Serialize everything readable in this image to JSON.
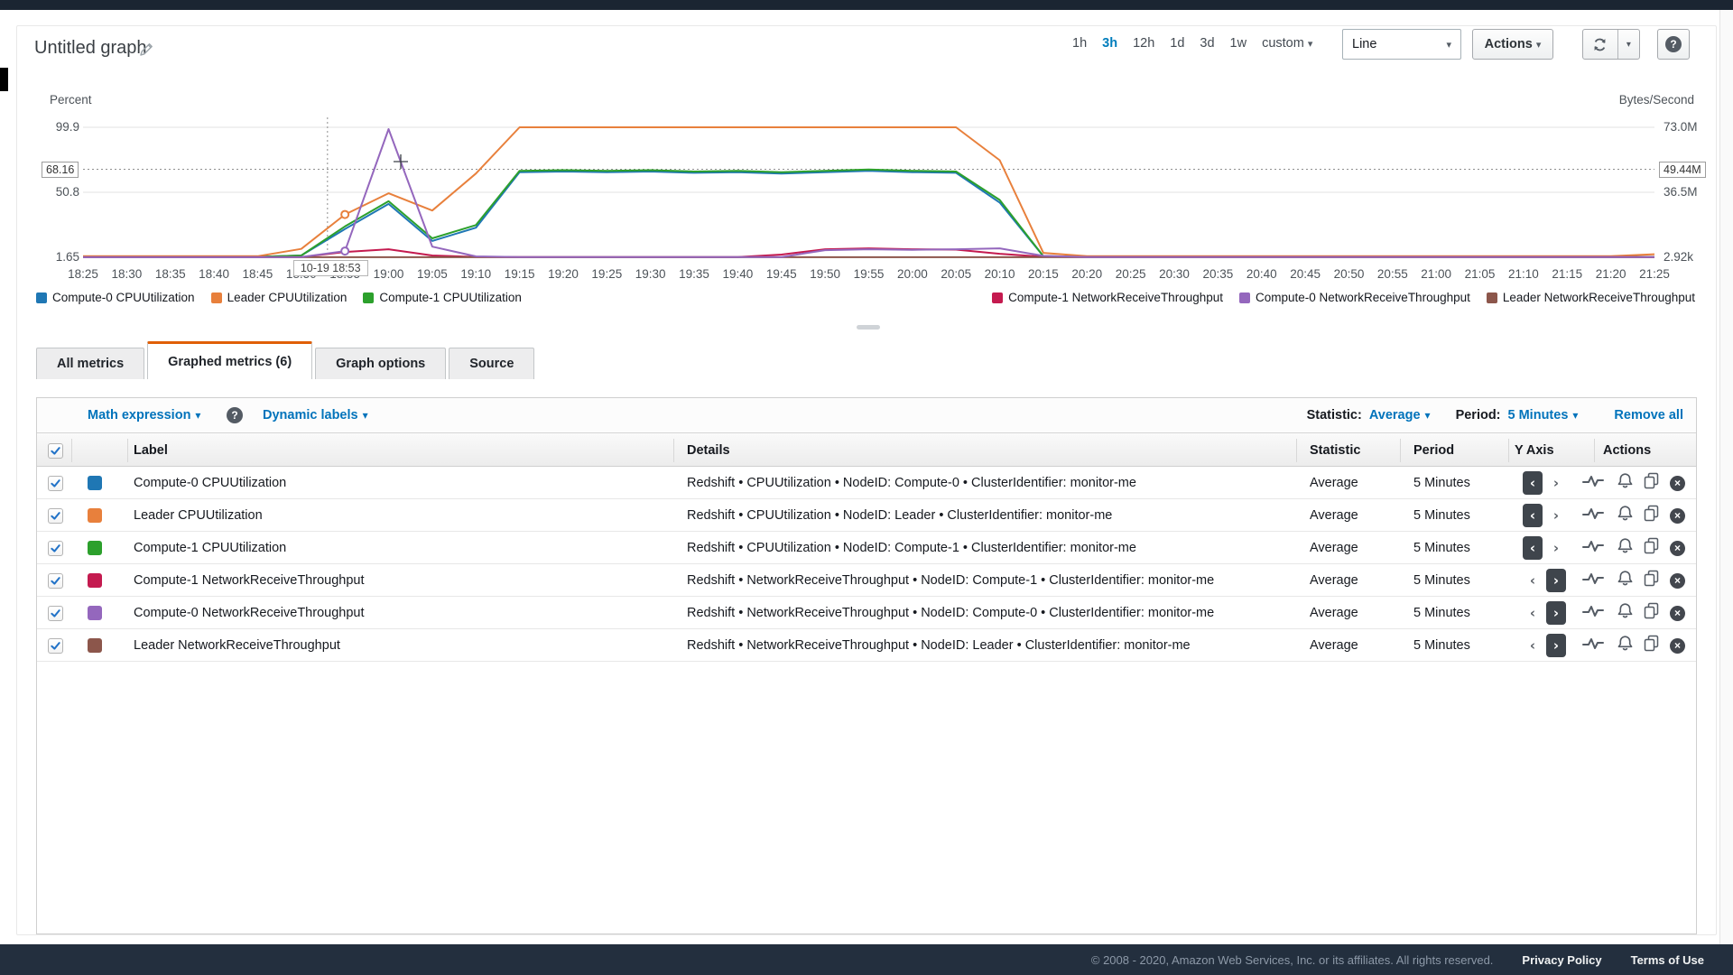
{
  "header": {
    "title": "Untitled graph",
    "time_ranges": [
      "1h",
      "3h",
      "12h",
      "1d",
      "3d",
      "1w"
    ],
    "active_range": "3h",
    "custom_label": "custom",
    "chart_type_selected": "Line",
    "actions_label": "Actions",
    "icons": [
      "edit-pencil-icon",
      "refresh-icon",
      "dropdown-caret-icon",
      "help-question-icon"
    ]
  },
  "chart_data": {
    "type": "line",
    "x_times": [
      "18:25",
      "18:30",
      "18:35",
      "18:40",
      "18:45",
      "18:50",
      "18:55",
      "19:00",
      "19:05",
      "19:10",
      "19:15",
      "19:20",
      "19:25",
      "19:30",
      "19:35",
      "19:40",
      "19:45",
      "19:50",
      "19:55",
      "20:00",
      "20:05",
      "20:10",
      "20:15",
      "20:20",
      "20:25",
      "20:30",
      "20:35",
      "20:40",
      "20:45",
      "20:50",
      "20:55",
      "21:00",
      "21:05",
      "21:10",
      "21:15",
      "21:20",
      "21:25"
    ],
    "left_axis": {
      "label": "Percent",
      "min": 1.65,
      "max": 99.9,
      "tick_labels": [
        "99.9",
        "50.8",
        "1.65"
      ],
      "tick_values": [
        99.9,
        50.8,
        1.65
      ]
    },
    "right_axis": {
      "label": "Bytes/Second",
      "min": 0,
      "max": 73000000,
      "tick_labels": [
        "73.0M",
        "36.5M",
        "2.92k"
      ],
      "tick_values": [
        73000000,
        36500000,
        2920
      ]
    },
    "hover": {
      "time_label": "10-19 18:53",
      "time": "18:53",
      "left_value": "68.16",
      "right_value": "49.44M",
      "left_value_num": 68.16
    },
    "grid": true,
    "legend_position": "bottom",
    "series": [
      {
        "name": "Compute-0 CPUUtilization",
        "color": "#1f77b4",
        "axis": "left",
        "values": [
          2,
          2,
          2,
          2,
          2,
          3,
          23,
          42,
          14,
          24,
          66,
          66.5,
          66,
          66.5,
          65.5,
          66,
          65,
          66,
          67,
          66,
          65.5,
          43,
          2.5,
          2,
          2,
          2,
          2,
          2,
          2,
          2,
          2,
          2,
          2,
          2,
          2,
          2,
          2
        ]
      },
      {
        "name": "Compute-1 CPUUtilization",
        "color": "#2ca02c",
        "axis": "left",
        "values": [
          2,
          2,
          2,
          2,
          2,
          3,
          25,
          44,
          16,
          26,
          67,
          67.5,
          67,
          67.5,
          66.5,
          67,
          66,
          67,
          68,
          67,
          66.5,
          45,
          2.5,
          2,
          2,
          2,
          2,
          2,
          2,
          2,
          2,
          2,
          2,
          2,
          2,
          2,
          2
        ]
      },
      {
        "name": "Leader CPUUtilization",
        "color": "#e8803c",
        "axis": "left",
        "marker_index": 6,
        "values": [
          2.5,
          2.5,
          2.5,
          2.5,
          2.5,
          8,
          34,
          50,
          37,
          65,
          99.9,
          99.9,
          99.9,
          99.9,
          99.9,
          99.9,
          99.9,
          99.9,
          99.9,
          99.9,
          99.9,
          75,
          5,
          2.5,
          2.5,
          2.5,
          2.5,
          2.5,
          2.5,
          2.5,
          2.5,
          2.5,
          2.5,
          2.5,
          2.5,
          2.5,
          4
        ]
      },
      {
        "name": "Compute-1 NetworkReceiveThroughput",
        "color": "#c41a4f",
        "axis": "right",
        "values": [
          50000,
          50000,
          50000,
          50000,
          50000,
          80000,
          3000000,
          4500000,
          1000000,
          200000,
          150000,
          150000,
          150000,
          150000,
          150000,
          150000,
          1500000,
          4500000,
          5000000,
          4500000,
          4300000,
          2000000,
          300000,
          150000,
          150000,
          150000,
          150000,
          150000,
          150000,
          150000,
          150000,
          150000,
          150000,
          150000,
          150000,
          150000,
          150000
        ]
      },
      {
        "name": "Leader NetworkReceiveThroughput",
        "color": "#8c564b",
        "axis": "right",
        "values": [
          60000,
          60000,
          60000,
          60000,
          60000,
          60000,
          60000,
          60000,
          60000,
          60000,
          60000,
          60000,
          60000,
          60000,
          60000,
          60000,
          60000,
          60000,
          60000,
          60000,
          60000,
          60000,
          60000,
          60000,
          60000,
          60000,
          60000,
          60000,
          60000,
          60000,
          60000,
          60000,
          60000,
          60000,
          60000,
          60000,
          60000
        ]
      },
      {
        "name": "Compute-0 NetworkReceiveThroughput",
        "color": "#9467bd",
        "axis": "right",
        "marker_index": 6,
        "values": [
          50000,
          50000,
          50000,
          50000,
          50000,
          80000,
          3500000,
          72000000,
          6000000,
          500000,
          150000,
          150000,
          150000,
          150000,
          150000,
          150000,
          150000,
          4000000,
          4500000,
          4200000,
          4500000,
          5000000,
          800000,
          150000,
          150000,
          150000,
          150000,
          150000,
          150000,
          150000,
          150000,
          150000,
          150000,
          150000,
          150000,
          150000,
          150000
        ]
      }
    ],
    "legend_left": [
      "Compute-0 CPUUtilization",
      "Leader CPUUtilization",
      "Compute-1 CPUUtilization"
    ],
    "legend_right": [
      "Compute-1 NetworkReceiveThroughput",
      "Compute-0 NetworkReceiveThroughput",
      "Leader NetworkReceiveThroughput"
    ],
    "legend_colors": {
      "Compute-0 CPUUtilization": "#1f77b4",
      "Leader CPUUtilization": "#e8803c",
      "Compute-1 CPUUtilization": "#2ca02c",
      "Compute-1 NetworkReceiveThroughput": "#c41a4f",
      "Compute-0 NetworkReceiveThroughput": "#9467bd",
      "Leader NetworkReceiveThroughput": "#8c564b"
    }
  },
  "tabs": [
    {
      "label": "All metrics",
      "active": false
    },
    {
      "label": "Graphed metrics (6)",
      "active": true
    },
    {
      "label": "Graph options",
      "active": false
    },
    {
      "label": "Source",
      "active": false
    }
  ],
  "toolbar": {
    "math_expression": "Math expression",
    "dynamic_labels": "Dynamic labels",
    "statistic_label": "Statistic:",
    "statistic_value": "Average",
    "period_label": "Period:",
    "period_value": "5 Minutes",
    "remove_all": "Remove all",
    "icons": [
      "help-question-icon"
    ]
  },
  "table": {
    "headers": [
      "Label",
      "Details",
      "Statistic",
      "Period",
      "Y Axis",
      "Actions"
    ],
    "select_all_checked": true,
    "action_icons": [
      "sparkline-icon",
      "alarm-bell-icon",
      "duplicate-icon",
      "remove-icon"
    ],
    "rows": [
      {
        "checked": true,
        "color": "#1f77b4",
        "label": "Compute-0 CPUUtilization",
        "details": "Redshift • CPUUtilization • NodeID: Compute-0 • ClusterIdentifier: monitor-me",
        "statistic": "Average",
        "period": "5 Minutes",
        "y_axis": "left"
      },
      {
        "checked": true,
        "color": "#e8803c",
        "label": "Leader CPUUtilization",
        "details": "Redshift • CPUUtilization • NodeID: Leader • ClusterIdentifier: monitor-me",
        "statistic": "Average",
        "period": "5 Minutes",
        "y_axis": "left"
      },
      {
        "checked": true,
        "color": "#2ca02c",
        "label": "Compute-1 CPUUtilization",
        "details": "Redshift • CPUUtilization • NodeID: Compute-1 • ClusterIdentifier: monitor-me",
        "statistic": "Average",
        "period": "5 Minutes",
        "y_axis": "left"
      },
      {
        "checked": true,
        "color": "#c41a4f",
        "label": "Compute-1 NetworkReceiveThroughput",
        "details": "Redshift • NetworkReceiveThroughput • NodeID: Compute-1 • ClusterIdentifier: monitor-me",
        "statistic": "Average",
        "period": "5 Minutes",
        "y_axis": "right"
      },
      {
        "checked": true,
        "color": "#9467bd",
        "label": "Compute-0 NetworkReceiveThroughput",
        "details": "Redshift • NetworkReceiveThroughput • NodeID: Compute-0 • ClusterIdentifier: monitor-me",
        "statistic": "Average",
        "period": "5 Minutes",
        "y_axis": "right"
      },
      {
        "checked": true,
        "color": "#8c564b",
        "label": "Leader NetworkReceiveThroughput",
        "details": "Redshift • NetworkReceiveThroughput • NodeID: Leader • ClusterIdentifier: monitor-me",
        "statistic": "Average",
        "period": "5 Minutes",
        "y_axis": "right"
      }
    ]
  },
  "footer": {
    "copyright": "© 2008 - 2020, Amazon Web Services, Inc. or its affiliates. All rights reserved.",
    "privacy": "Privacy Policy",
    "terms": "Terms of Use"
  },
  "colors": {
    "accent_blue": "#0073bb",
    "tab_orange": "#e05f07",
    "nav_dark": "#232f3e"
  }
}
